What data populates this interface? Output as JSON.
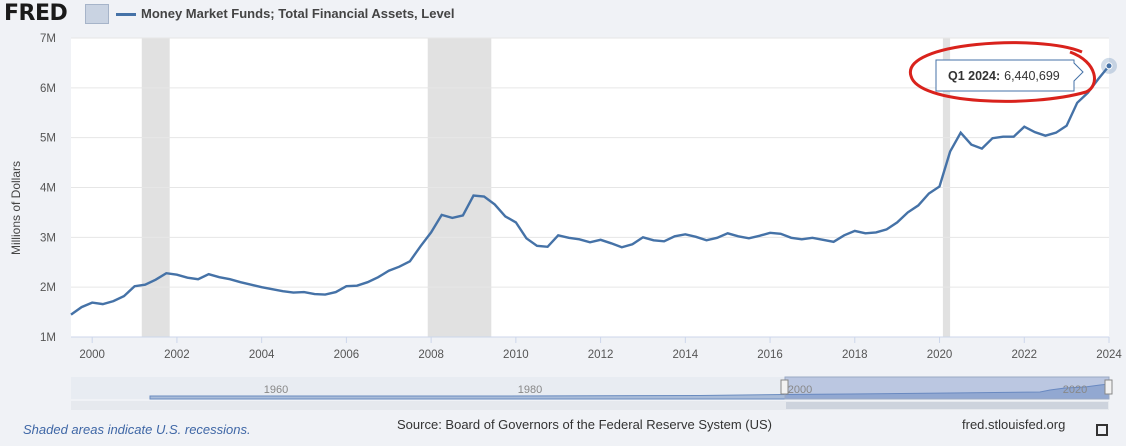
{
  "header": {
    "logo_text": "FRED",
    "series_title": "Money Market Funds; Total Financial Assets, Level"
  },
  "chart_data": {
    "type": "line",
    "title": "Money Market Funds; Total Financial Assets, Level",
    "ylabel": "Millions of Dollars",
    "ylim": [
      1000000,
      7000000
    ],
    "xlim": [
      1999.5,
      2024
    ],
    "y_ticks": [
      1000000,
      2000000,
      3000000,
      4000000,
      5000000,
      6000000,
      7000000
    ],
    "y_tick_labels": [
      "1M",
      "2M",
      "3M",
      "4M",
      "5M",
      "6M",
      "7M"
    ],
    "x_ticks": [
      2000,
      2002,
      2004,
      2006,
      2008,
      2010,
      2012,
      2014,
      2016,
      2018,
      2020,
      2022,
      2024
    ],
    "x_tick_labels": [
      "2000",
      "2002",
      "2004",
      "2006",
      "2008",
      "2010",
      "2012",
      "2014",
      "2016",
      "2018",
      "2020",
      "2022",
      "2024"
    ],
    "grid": true,
    "line_color": "#4572a7",
    "recessions": [
      [
        2001.17,
        2001.83
      ],
      [
        2007.92,
        2009.42
      ],
      [
        2020.08,
        2020.25
      ]
    ],
    "tooltip": {
      "label": "Q1 2024:",
      "value": "6,440,699"
    },
    "series": [
      {
        "name": "Money Market Funds; Total Financial Assets, Level",
        "points": [
          [
            1999.5,
            1450000
          ],
          [
            1999.75,
            1600000
          ],
          [
            2000.0,
            1690000
          ],
          [
            2000.25,
            1660000
          ],
          [
            2000.5,
            1720000
          ],
          [
            2000.75,
            1820000
          ],
          [
            2001.0,
            2020000
          ],
          [
            2001.25,
            2050000
          ],
          [
            2001.5,
            2150000
          ],
          [
            2001.75,
            2280000
          ],
          [
            2002.0,
            2250000
          ],
          [
            2002.25,
            2190000
          ],
          [
            2002.5,
            2160000
          ],
          [
            2002.75,
            2260000
          ],
          [
            2003.0,
            2200000
          ],
          [
            2003.25,
            2160000
          ],
          [
            2003.5,
            2100000
          ],
          [
            2003.75,
            2050000
          ],
          [
            2004.0,
            2000000
          ],
          [
            2004.25,
            1960000
          ],
          [
            2004.5,
            1920000
          ],
          [
            2004.75,
            1890000
          ],
          [
            2005.0,
            1900000
          ],
          [
            2005.25,
            1860000
          ],
          [
            2005.5,
            1850000
          ],
          [
            2005.75,
            1900000
          ],
          [
            2006.0,
            2020000
          ],
          [
            2006.25,
            2030000
          ],
          [
            2006.5,
            2100000
          ],
          [
            2006.75,
            2200000
          ],
          [
            2007.0,
            2330000
          ],
          [
            2007.25,
            2410000
          ],
          [
            2007.5,
            2520000
          ],
          [
            2007.75,
            2820000
          ],
          [
            2008.0,
            3100000
          ],
          [
            2008.25,
            3450000
          ],
          [
            2008.5,
            3390000
          ],
          [
            2008.75,
            3440000
          ],
          [
            2009.0,
            3840000
          ],
          [
            2009.25,
            3820000
          ],
          [
            2009.5,
            3660000
          ],
          [
            2009.75,
            3420000
          ],
          [
            2010.0,
            3300000
          ],
          [
            2010.25,
            2980000
          ],
          [
            2010.5,
            2830000
          ],
          [
            2010.75,
            2810000
          ],
          [
            2011.0,
            3040000
          ],
          [
            2011.25,
            2990000
          ],
          [
            2011.5,
            2960000
          ],
          [
            2011.75,
            2900000
          ],
          [
            2012.0,
            2950000
          ],
          [
            2012.25,
            2880000
          ],
          [
            2012.5,
            2800000
          ],
          [
            2012.75,
            2860000
          ],
          [
            2013.0,
            3000000
          ],
          [
            2013.25,
            2940000
          ],
          [
            2013.5,
            2920000
          ],
          [
            2013.75,
            3020000
          ],
          [
            2014.0,
            3060000
          ],
          [
            2014.25,
            3010000
          ],
          [
            2014.5,
            2940000
          ],
          [
            2014.75,
            2990000
          ],
          [
            2015.0,
            3080000
          ],
          [
            2015.25,
            3020000
          ],
          [
            2015.5,
            2980000
          ],
          [
            2015.75,
            3030000
          ],
          [
            2016.0,
            3090000
          ],
          [
            2016.25,
            3070000
          ],
          [
            2016.5,
            2990000
          ],
          [
            2016.75,
            2960000
          ],
          [
            2017.0,
            2990000
          ],
          [
            2017.25,
            2950000
          ],
          [
            2017.5,
            2910000
          ],
          [
            2017.75,
            3040000
          ],
          [
            2018.0,
            3130000
          ],
          [
            2018.25,
            3080000
          ],
          [
            2018.5,
            3100000
          ],
          [
            2018.75,
            3160000
          ],
          [
            2019.0,
            3300000
          ],
          [
            2019.25,
            3500000
          ],
          [
            2019.5,
            3640000
          ],
          [
            2019.75,
            3880000
          ],
          [
            2020.0,
            4020000
          ],
          [
            2020.25,
            4720000
          ],
          [
            2020.5,
            5100000
          ],
          [
            2020.75,
            4860000
          ],
          [
            2021.0,
            4780000
          ],
          [
            2021.25,
            4990000
          ],
          [
            2021.5,
            5020000
          ],
          [
            2021.75,
            5020000
          ],
          [
            2022.0,
            5220000
          ],
          [
            2022.25,
            5110000
          ],
          [
            2022.5,
            5040000
          ],
          [
            2022.75,
            5100000
          ],
          [
            2023.0,
            5240000
          ],
          [
            2023.25,
            5700000
          ],
          [
            2023.5,
            5900000
          ],
          [
            2023.75,
            6180000
          ],
          [
            2024.0,
            6440699
          ]
        ]
      }
    ],
    "navigator": {
      "labels": [
        "1960",
        "1980",
        "2000",
        "2020"
      ]
    }
  },
  "footer": {
    "recession_note": "Shaded areas indicate U.S. recessions.",
    "source": "Source: Board of Governors of the Federal Reserve System (US)",
    "site": "fred.stlouisfed.org"
  }
}
